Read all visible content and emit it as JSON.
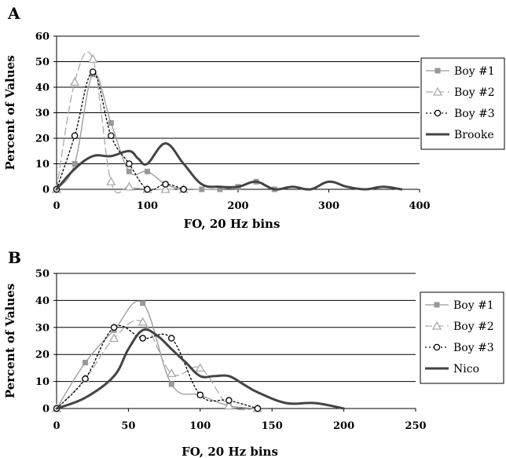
{
  "chart_data": [
    {
      "panel": "A",
      "type": "line",
      "xlabel": "FO, 20 Hz bins",
      "ylabel": "Percent of Values",
      "xlim": [
        0,
        400
      ],
      "ylim": [
        0,
        60
      ],
      "xticks": [
        0,
        100,
        200,
        300,
        400
      ],
      "yticks": [
        0,
        10,
        20,
        30,
        40,
        50,
        60
      ],
      "grid": "horizontal",
      "legend_position": "right",
      "series": [
        {
          "name": "Boy #1",
          "color": "#999999",
          "dash": "solid",
          "marker": "square",
          "marker_fill": "#999999",
          "x": [
            0,
            20,
            40,
            60,
            80,
            100,
            120,
            140,
            160,
            180,
            200,
            220,
            240
          ],
          "y": [
            0,
            10,
            45,
            26,
            7,
            7,
            2,
            0,
            0,
            0,
            1,
            3,
            0
          ]
        },
        {
          "name": "Boy #2",
          "color": "#aaaaaa",
          "dash": "long",
          "marker": "triangle",
          "marker_fill": "#ffffff",
          "x": [
            0,
            20,
            40,
            60,
            80,
            100,
            120,
            140
          ],
          "y": [
            0,
            42,
            51,
            3,
            1,
            0,
            0,
            0
          ]
        },
        {
          "name": "Boy #3",
          "color": "#000000",
          "dash": "dotted",
          "marker": "circle",
          "marker_fill": "#ffffff",
          "x": [
            0,
            20,
            40,
            60,
            80,
            100,
            120,
            140
          ],
          "y": [
            0,
            21,
            46,
            21,
            10,
            0,
            2,
            0
          ]
        },
        {
          "name": "Brooke",
          "color": "#444444",
          "dash": "solid",
          "marker": "none",
          "width": 3,
          "x": [
            0,
            20,
            40,
            60,
            80,
            90,
            100,
            120,
            140,
            160,
            180,
            200,
            220,
            240,
            260,
            280,
            300,
            320,
            340,
            360,
            380
          ],
          "y": [
            0,
            8,
            13,
            13,
            15,
            12,
            10,
            18,
            10,
            2,
            1,
            1,
            3,
            0,
            1,
            0,
            3,
            1,
            0,
            1,
            0
          ]
        }
      ]
    },
    {
      "panel": "B",
      "type": "line",
      "xlabel": "FO, 20 Hz bins",
      "ylabel": "Percent of Values",
      "xlim": [
        0,
        250
      ],
      "ylim": [
        0,
        50
      ],
      "xticks": [
        0,
        50,
        100,
        150,
        200,
        250
      ],
      "yticks": [
        0,
        10,
        20,
        30,
        40,
        50
      ],
      "grid": "horizontal",
      "legend_position": "right",
      "series": [
        {
          "name": "Boy #1",
          "color": "#999999",
          "dash": "solid",
          "marker": "square",
          "marker_fill": "#999999",
          "x": [
            0,
            20,
            40,
            60,
            80,
            100,
            120,
            140
          ],
          "y": [
            0,
            17,
            29,
            39,
            9,
            5,
            1,
            0
          ]
        },
        {
          "name": "Boy #2",
          "color": "#aaaaaa",
          "dash": "long",
          "marker": "triangle",
          "marker_fill": "#ffffff",
          "x": [
            0,
            20,
            40,
            60,
            80,
            100,
            120,
            140
          ],
          "y": [
            0,
            11,
            26,
            32,
            13,
            15,
            1,
            0
          ]
        },
        {
          "name": "Boy #3",
          "color": "#000000",
          "dash": "dotted",
          "marker": "circle",
          "marker_fill": "#ffffff",
          "x": [
            0,
            20,
            40,
            60,
            80,
            100,
            120,
            140
          ],
          "y": [
            0,
            11,
            30,
            26,
            26,
            5,
            3,
            0
          ]
        },
        {
          "name": "Nico",
          "color": "#444444",
          "dash": "solid",
          "marker": "none",
          "width": 3,
          "x": [
            0,
            20,
            40,
            50,
            60,
            70,
            80,
            90,
            100,
            110,
            120,
            130,
            140,
            160,
            180,
            200
          ],
          "y": [
            0,
            4,
            12,
            22,
            29,
            27,
            22,
            17,
            12,
            12,
            12,
            9,
            6,
            2,
            2,
            0
          ]
        }
      ]
    }
  ]
}
